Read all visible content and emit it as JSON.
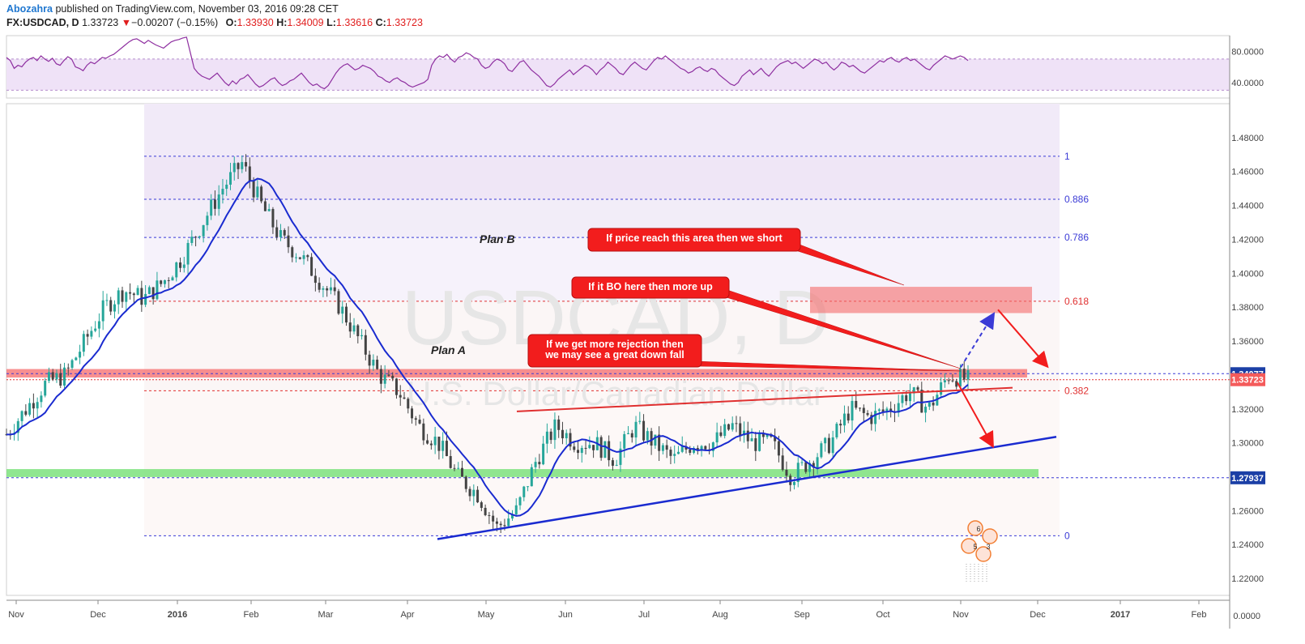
{
  "header": {
    "author": "Abozahra",
    "published": "published on TradingView.com, November 03, 2016 09:28 CET",
    "symbol": "FX:USDCAD, D",
    "last": "1.33723",
    "change_arrow": "▼",
    "change": "−0.00207 (−0.15%)",
    "o_label": "O:",
    "o": "1.33930",
    "h_label": "H:",
    "h": "1.34009",
    "l_label": "L:",
    "l": "1.33616",
    "c_label": "C:",
    "c": "1.33723"
  },
  "watermark": {
    "symbol": "USDCAD, D",
    "name": "U.S. Dollar/Canadian Dollar"
  },
  "colors": {
    "candle_up": "#26a69a",
    "candle_down": "#444444",
    "ma_line": "#1a2bd0",
    "rsi_line": "#8e2fa0",
    "fib_blue": "#3b3bd6",
    "fib_red": "#e03030",
    "callout": "#f21d1d",
    "support_zone": "#7de27d",
    "resistance_zone": "#f56b6b",
    "current_price_tag": "#f45b5b",
    "level_tag": "#1b3fa6"
  },
  "chart_data": [
    {
      "type": "line",
      "title": "RSI",
      "yticks": [
        "80.0000",
        "40.0000"
      ],
      "ylim": [
        20,
        100
      ],
      "bands": [
        30,
        70
      ],
      "series": [
        {
          "values": [
            72,
            68,
            58,
            62,
            60,
            66,
            70,
            72,
            68,
            74,
            70,
            67,
            71,
            64,
            62,
            68,
            73,
            70,
            60,
            58,
            55,
            62,
            66,
            64,
            68,
            72,
            71,
            74,
            76,
            80,
            84,
            88,
            92,
            95,
            96,
            93,
            90,
            94,
            91,
            88,
            86,
            84,
            88,
            92,
            94,
            95,
            97,
            98,
            78,
            58,
            52,
            48,
            46,
            44,
            48,
            52,
            46,
            40,
            36,
            42,
            38,
            44,
            46,
            50,
            44,
            38,
            34,
            36,
            40,
            44,
            46,
            40,
            36,
            38,
            42,
            44,
            48,
            52,
            46,
            40,
            36,
            38,
            34,
            32,
            36,
            44,
            52,
            58,
            62,
            64,
            60,
            56,
            58,
            62,
            60,
            58,
            54,
            48,
            46,
            42,
            40,
            44,
            46,
            42,
            40,
            36,
            34,
            36,
            38,
            40,
            44,
            62,
            70,
            74,
            72,
            76,
            70,
            66,
            72,
            74,
            78,
            76,
            72,
            70,
            62,
            58,
            60,
            66,
            70,
            68,
            64,
            56,
            54,
            60,
            66,
            68,
            62,
            56,
            52,
            48,
            42,
            36,
            34,
            38,
            44,
            48,
            52,
            56,
            50,
            54,
            58,
            62,
            60,
            56,
            50,
            56,
            60,
            66,
            62,
            58,
            52,
            50,
            56,
            62,
            66,
            62,
            58,
            56,
            62,
            68,
            72,
            70,
            74,
            70,
            66,
            62,
            58,
            56,
            52,
            54,
            58,
            60,
            56,
            54,
            58,
            56,
            50,
            46,
            42,
            38,
            36,
            40,
            48,
            52,
            56,
            50,
            54,
            58,
            52,
            48,
            54,
            60,
            64,
            66,
            68,
            64,
            66,
            62,
            58,
            62,
            66,
            70,
            68,
            64,
            66,
            60,
            56,
            60,
            66,
            64,
            60,
            62,
            58,
            54,
            52,
            56,
            60,
            64,
            68,
            66,
            70,
            72,
            68,
            66,
            70,
            72,
            68,
            70,
            66,
            62,
            58,
            56,
            62,
            66,
            70,
            74,
            72,
            70,
            72,
            74,
            72,
            68
          ]
        }
      ]
    },
    {
      "type": "bar",
      "title": "USDCAD, D",
      "ylim": [
        1.21,
        1.5
      ],
      "yticks": [
        "1.48000",
        "1.46000",
        "1.44000",
        "1.42000",
        "1.40000",
        "1.38000",
        "1.36000",
        "1.34000",
        "1.32000",
        "1.30000",
        "1.28000",
        "1.26000",
        "1.24000",
        "1.22000"
      ],
      "secondary_tick": "0.0000",
      "xticks": [
        "Nov",
        "Dec",
        "2016",
        "Feb",
        "Mar",
        "Apr",
        "May",
        "Jun",
        "Jul",
        "Aug",
        "Sep",
        "Oct",
        "Nov",
        "Dec",
        "2017",
        "Feb"
      ],
      "price_tags": [
        {
          "value": 1.34077,
          "label": "1.34077"
        },
        {
          "value": 1.33723,
          "label": "1.33723"
        },
        {
          "value": 1.27937,
          "label": "1.27937"
        }
      ],
      "close_approx": [
        1.305,
        1.32,
        1.335,
        1.34,
        1.36,
        1.38,
        1.39,
        1.385,
        1.395,
        1.41,
        1.43,
        1.45,
        1.465,
        1.44,
        1.42,
        1.41,
        1.395,
        1.38,
        1.36,
        1.34,
        1.33,
        1.31,
        1.3,
        1.28,
        1.27,
        1.25,
        1.26,
        1.29,
        1.31,
        1.3,
        1.3,
        1.29,
        1.31,
        1.3,
        1.29,
        1.3,
        1.3,
        1.31,
        1.3,
        1.3,
        1.28,
        1.29,
        1.3,
        1.32,
        1.315,
        1.32,
        1.33,
        1.32,
        1.34,
        1.337
      ],
      "fibonacci": [
        {
          "label": "1",
          "value": 1.469
        },
        {
          "label": "0.886",
          "value": 1.4436
        },
        {
          "label": "0.786",
          "value": 1.4211
        },
        {
          "label": "0.618",
          "value": 1.3835
        },
        {
          "label": "0.382",
          "value": 1.3307
        },
        {
          "label": "0",
          "value": 1.2452
        }
      ],
      "annotations": [
        "Plan B",
        "Plan A",
        "If price reach this area then we short",
        "If it BO here then more up",
        "If we get more rejection then",
        "we may see a great down fall"
      ],
      "event_badges": [
        "6",
        "5",
        "3"
      ]
    }
  ]
}
